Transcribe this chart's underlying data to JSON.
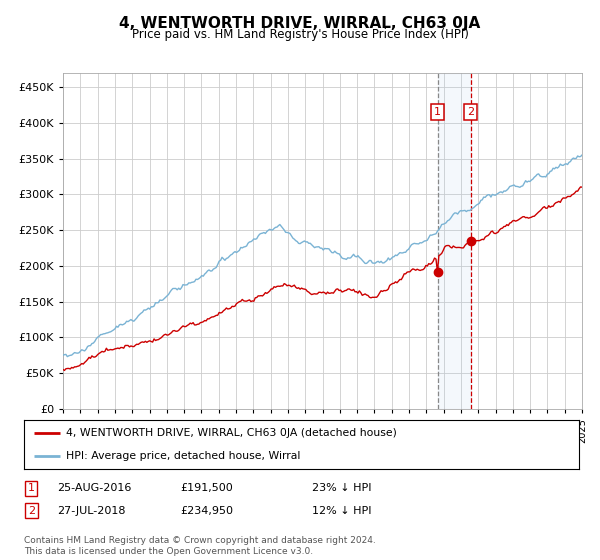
{
  "title": "4, WENTWORTH DRIVE, WIRRAL, CH63 0JA",
  "subtitle": "Price paid vs. HM Land Registry's House Price Index (HPI)",
  "ylim": [
    0,
    470000
  ],
  "yticks": [
    0,
    50000,
    100000,
    150000,
    200000,
    250000,
    300000,
    350000,
    400000,
    450000
  ],
  "hpi_color": "#7ab3d4",
  "price_color": "#cc0000",
  "sale1_date_x": 2016.65,
  "sale1_price": 191500,
  "sale2_date_x": 2018.57,
  "sale2_price": 234950,
  "legend_entries": [
    "4, WENTWORTH DRIVE, WIRRAL, CH63 0JA (detached house)",
    "HPI: Average price, detached house, Wirral"
  ],
  "table_rows": [
    [
      "1",
      "25-AUG-2016",
      "£191,500",
      "23% ↓ HPI"
    ],
    [
      "2",
      "27-JUL-2018",
      "£234,950",
      "12% ↓ HPI"
    ]
  ],
  "footer": "Contains HM Land Registry data © Crown copyright and database right 2024.\nThis data is licensed under the Open Government Licence v3.0.",
  "background_color": "#ffffff",
  "grid_color": "#cccccc",
  "xlim_start": 1995,
  "xlim_end": 2025
}
